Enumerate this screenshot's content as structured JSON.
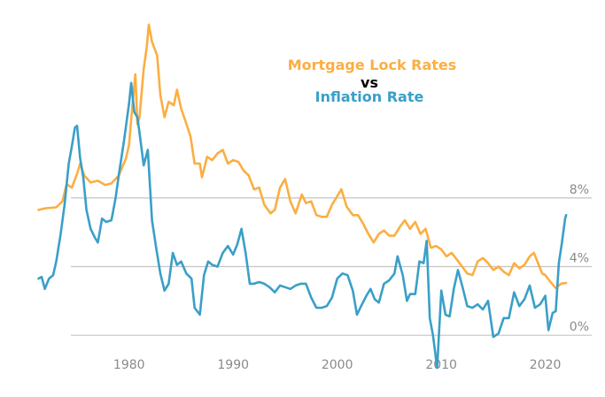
{
  "chart_data": {
    "type": "line",
    "title": {
      "line1": "Mortgage Lock Rates",
      "line2": "vs",
      "line3": "Inflation Rate"
    },
    "colors": {
      "mortgage": "#fbae42",
      "inflation": "#3a9fc8",
      "title_vs": "#000000",
      "grid": "#c4c4c4",
      "tick_text": "#8a8a8a"
    },
    "xlabel": "",
    "ylabel": "",
    "xlim": [
      1971.0,
      2022.5
    ],
    "ylim": [
      -2.0,
      18.5
    ],
    "grid": "horizontal",
    "legend": "none (series named in title)",
    "x_ticks": [
      {
        "value": 1980,
        "label": "1980"
      },
      {
        "value": 1990,
        "label": "1990"
      },
      {
        "value": 2000,
        "label": "2000"
      },
      {
        "value": 2010,
        "label": "2010"
      },
      {
        "value": 2020,
        "label": "2020"
      }
    ],
    "y_ticks": [
      {
        "value": 8,
        "label": "8%"
      },
      {
        "value": 4,
        "label": "4%"
      },
      {
        "value": 0,
        "label": "0%"
      }
    ],
    "series": [
      {
        "name": "Mortgage Lock Rates",
        "color_key": "mortgage",
        "points": [
          [
            1971.3,
            7.3
          ],
          [
            1972.0,
            7.4
          ],
          [
            1973.0,
            7.45
          ],
          [
            1973.6,
            7.8
          ],
          [
            1974.0,
            8.8
          ],
          [
            1974.5,
            8.6
          ],
          [
            1975.0,
            9.4
          ],
          [
            1975.3,
            10.0
          ],
          [
            1975.7,
            9.3
          ],
          [
            1976.3,
            8.9
          ],
          [
            1977.0,
            9.0
          ],
          [
            1977.7,
            8.75
          ],
          [
            1978.3,
            8.85
          ],
          [
            1979.0,
            9.3
          ],
          [
            1979.7,
            10.3
          ],
          [
            1980.0,
            11.1
          ],
          [
            1980.3,
            13.3
          ],
          [
            1980.6,
            15.2
          ],
          [
            1980.8,
            12.3
          ],
          [
            1981.0,
            12.7
          ],
          [
            1981.4,
            15.5
          ],
          [
            1981.7,
            16.8
          ],
          [
            1981.9,
            18.1
          ],
          [
            1982.2,
            17.1
          ],
          [
            1982.7,
            16.3
          ],
          [
            1983.0,
            14.0
          ],
          [
            1983.4,
            12.7
          ],
          [
            1983.8,
            13.6
          ],
          [
            1984.3,
            13.4
          ],
          [
            1984.6,
            14.3
          ],
          [
            1985.0,
            13.2
          ],
          [
            1985.4,
            12.5
          ],
          [
            1985.9,
            11.6
          ],
          [
            1986.3,
            10.0
          ],
          [
            1986.8,
            10.0
          ],
          [
            1987.0,
            9.2
          ],
          [
            1987.5,
            10.4
          ],
          [
            1988.0,
            10.2
          ],
          [
            1988.5,
            10.6
          ],
          [
            1989.0,
            10.8
          ],
          [
            1989.5,
            10.0
          ],
          [
            1990.0,
            10.2
          ],
          [
            1990.5,
            10.1
          ],
          [
            1991.0,
            9.6
          ],
          [
            1991.5,
            9.3
          ],
          [
            1992.0,
            8.5
          ],
          [
            1992.5,
            8.6
          ],
          [
            1993.0,
            7.6
          ],
          [
            1993.6,
            7.1
          ],
          [
            1994.0,
            7.3
          ],
          [
            1994.5,
            8.6
          ],
          [
            1995.0,
            9.1
          ],
          [
            1995.5,
            7.8
          ],
          [
            1996.0,
            7.1
          ],
          [
            1996.6,
            8.2
          ],
          [
            1997.0,
            7.7
          ],
          [
            1997.5,
            7.8
          ],
          [
            1998.0,
            7.0
          ],
          [
            1998.5,
            6.9
          ],
          [
            1999.0,
            6.9
          ],
          [
            1999.5,
            7.6
          ],
          [
            2000.0,
            8.1
          ],
          [
            2000.4,
            8.5
          ],
          [
            2000.9,
            7.5
          ],
          [
            2001.5,
            7.0
          ],
          [
            2002.0,
            7.0
          ],
          [
            2002.5,
            6.5
          ],
          [
            2003.0,
            5.9
          ],
          [
            2003.5,
            5.4
          ],
          [
            2004.0,
            5.9
          ],
          [
            2004.5,
            6.1
          ],
          [
            2005.0,
            5.8
          ],
          [
            2005.5,
            5.8
          ],
          [
            2006.0,
            6.3
          ],
          [
            2006.5,
            6.7
          ],
          [
            2007.0,
            6.2
          ],
          [
            2007.5,
            6.6
          ],
          [
            2008.0,
            5.9
          ],
          [
            2008.5,
            6.2
          ],
          [
            2009.0,
            5.1
          ],
          [
            2009.5,
            5.2
          ],
          [
            2010.0,
            5.0
          ],
          [
            2010.5,
            4.6
          ],
          [
            2011.0,
            4.8
          ],
          [
            2011.5,
            4.4
          ],
          [
            2012.0,
            4.0
          ],
          [
            2012.5,
            3.6
          ],
          [
            2013.0,
            3.5
          ],
          [
            2013.5,
            4.3
          ],
          [
            2014.0,
            4.5
          ],
          [
            2014.5,
            4.2
          ],
          [
            2015.0,
            3.8
          ],
          [
            2015.5,
            4.0
          ],
          [
            2016.0,
            3.7
          ],
          [
            2016.5,
            3.5
          ],
          [
            2017.0,
            4.2
          ],
          [
            2017.5,
            3.9
          ],
          [
            2018.0,
            4.1
          ],
          [
            2018.5,
            4.6
          ],
          [
            2018.9,
            4.8
          ],
          [
            2019.3,
            4.2
          ],
          [
            2019.7,
            3.6
          ],
          [
            2020.0,
            3.5
          ],
          [
            2020.5,
            3.1
          ],
          [
            2021.0,
            2.75
          ],
          [
            2021.5,
            3.0
          ],
          [
            2022.0,
            3.05
          ]
        ]
      },
      {
        "name": "Inflation Rate",
        "color_key": "inflation",
        "points": [
          [
            1971.3,
            3.3
          ],
          [
            1971.6,
            3.4
          ],
          [
            1971.9,
            2.7
          ],
          [
            1972.3,
            3.3
          ],
          [
            1972.7,
            3.5
          ],
          [
            1973.0,
            4.3
          ],
          [
            1973.4,
            5.8
          ],
          [
            1973.8,
            7.6
          ],
          [
            1974.2,
            10.0
          ],
          [
            1974.5,
            11.0
          ],
          [
            1974.8,
            12.1
          ],
          [
            1975.0,
            12.2
          ],
          [
            1975.3,
            10.3
          ],
          [
            1975.6,
            9.2
          ],
          [
            1975.9,
            7.3
          ],
          [
            1976.3,
            6.2
          ],
          [
            1976.7,
            5.7
          ],
          [
            1977.0,
            5.4
          ],
          [
            1977.4,
            6.8
          ],
          [
            1977.8,
            6.6
          ],
          [
            1978.3,
            6.7
          ],
          [
            1978.7,
            8.0
          ],
          [
            1979.0,
            9.3
          ],
          [
            1979.5,
            11.3
          ],
          [
            1980.0,
            13.5
          ],
          [
            1980.2,
            14.7
          ],
          [
            1980.5,
            13.0
          ],
          [
            1980.8,
            12.7
          ],
          [
            1981.0,
            11.8
          ],
          [
            1981.4,
            9.9
          ],
          [
            1981.8,
            10.8
          ],
          [
            1982.2,
            6.7
          ],
          [
            1982.6,
            5.1
          ],
          [
            1983.0,
            3.6
          ],
          [
            1983.4,
            2.6
          ],
          [
            1983.8,
            3.0
          ],
          [
            1984.2,
            4.8
          ],
          [
            1984.6,
            4.1
          ],
          [
            1985.0,
            4.3
          ],
          [
            1985.5,
            3.6
          ],
          [
            1986.0,
            3.3
          ],
          [
            1986.3,
            1.6
          ],
          [
            1986.8,
            1.2
          ],
          [
            1987.2,
            3.5
          ],
          [
            1987.6,
            4.3
          ],
          [
            1988.0,
            4.1
          ],
          [
            1988.5,
            4.0
          ],
          [
            1989.0,
            4.8
          ],
          [
            1989.5,
            5.2
          ],
          [
            1990.0,
            4.7
          ],
          [
            1990.4,
            5.3
          ],
          [
            1990.8,
            6.2
          ],
          [
            1991.2,
            4.8
          ],
          [
            1991.6,
            3.0
          ],
          [
            1992.0,
            3.0
          ],
          [
            1992.5,
            3.1
          ],
          [
            1993.0,
            3.0
          ],
          [
            1993.5,
            2.8
          ],
          [
            1994.0,
            2.5
          ],
          [
            1994.5,
            2.9
          ],
          [
            1995.0,
            2.8
          ],
          [
            1995.5,
            2.7
          ],
          [
            1996.0,
            2.9
          ],
          [
            1996.5,
            3.0
          ],
          [
            1997.0,
            3.0
          ],
          [
            1997.5,
            2.2
          ],
          [
            1998.0,
            1.6
          ],
          [
            1998.5,
            1.6
          ],
          [
            1999.0,
            1.7
          ],
          [
            1999.5,
            2.2
          ],
          [
            2000.0,
            3.3
          ],
          [
            2000.5,
            3.6
          ],
          [
            2001.0,
            3.5
          ],
          [
            2001.5,
            2.6
          ],
          [
            2001.9,
            1.2
          ],
          [
            2002.3,
            1.7
          ],
          [
            2002.8,
            2.3
          ],
          [
            2003.2,
            2.7
          ],
          [
            2003.6,
            2.1
          ],
          [
            2004.0,
            1.9
          ],
          [
            2004.5,
            3.0
          ],
          [
            2005.0,
            3.2
          ],
          [
            2005.5,
            3.6
          ],
          [
            2005.8,
            4.6
          ],
          [
            2006.3,
            3.5
          ],
          [
            2006.7,
            2.0
          ],
          [
            2007.0,
            2.4
          ],
          [
            2007.5,
            2.4
          ],
          [
            2007.9,
            4.3
          ],
          [
            2008.3,
            4.2
          ],
          [
            2008.6,
            5.5
          ],
          [
            2008.9,
            1.0
          ],
          [
            2009.2,
            0.0
          ],
          [
            2009.6,
            -1.9
          ],
          [
            2010.0,
            2.6
          ],
          [
            2010.4,
            1.2
          ],
          [
            2010.8,
            1.1
          ],
          [
            2011.2,
            2.7
          ],
          [
            2011.6,
            3.8
          ],
          [
            2012.0,
            2.9
          ],
          [
            2012.5,
            1.7
          ],
          [
            2013.0,
            1.6
          ],
          [
            2013.5,
            1.8
          ],
          [
            2014.0,
            1.5
          ],
          [
            2014.5,
            2.0
          ],
          [
            2015.0,
            -0.1
          ],
          [
            2015.5,
            0.1
          ],
          [
            2016.0,
            1.0
          ],
          [
            2016.5,
            1.0
          ],
          [
            2017.0,
            2.5
          ],
          [
            2017.5,
            1.7
          ],
          [
            2018.0,
            2.1
          ],
          [
            2018.5,
            2.9
          ],
          [
            2019.0,
            1.6
          ],
          [
            2019.5,
            1.8
          ],
          [
            2020.0,
            2.3
          ],
          [
            2020.3,
            0.3
          ],
          [
            2020.7,
            1.3
          ],
          [
            2021.0,
            1.4
          ],
          [
            2021.3,
            4.2
          ],
          [
            2021.6,
            5.4
          ],
          [
            2021.9,
            6.8
          ],
          [
            2022.0,
            7.0
          ]
        ]
      }
    ]
  }
}
